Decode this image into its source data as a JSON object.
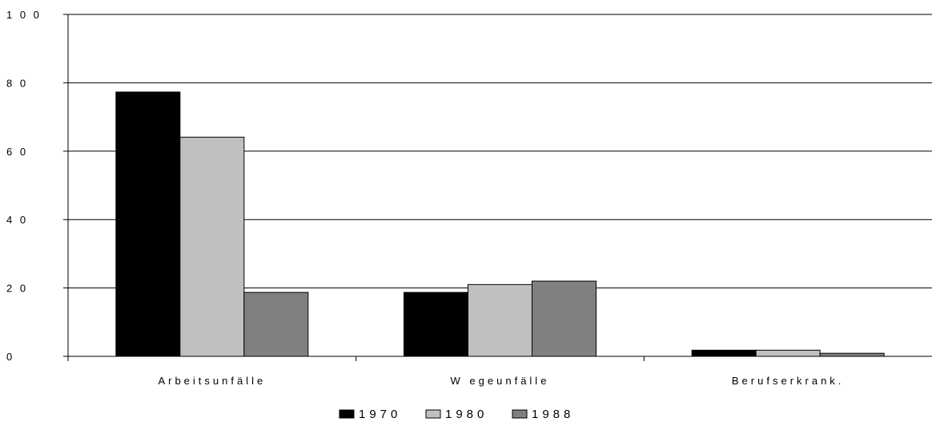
{
  "chart_data": {
    "type": "bar",
    "categories": [
      "Arbeitsunfälle",
      "W egeunfälle",
      "Berufserkrank."
    ],
    "series": [
      {
        "name": "1970",
        "values": [
          77.3,
          18.7,
          1.8
        ],
        "color": "#000000"
      },
      {
        "name": "1980",
        "values": [
          64.1,
          21.0,
          1.8
        ],
        "color": "#c0c0c0"
      },
      {
        "name": "1988",
        "values": [
          18.7,
          22.0,
          0.9
        ],
        "color": "#808080"
      }
    ],
    "title": "",
    "xlabel": "",
    "ylabel": "",
    "ylim": [
      0,
      100
    ],
    "yticks": [
      0,
      20,
      40,
      60,
      80,
      100
    ],
    "ytick_labels": [
      "0",
      "2 0",
      "4 0",
      "6 0",
      "8 0",
      "1 0 0"
    ],
    "grid": true,
    "legend": "bottom-center"
  }
}
